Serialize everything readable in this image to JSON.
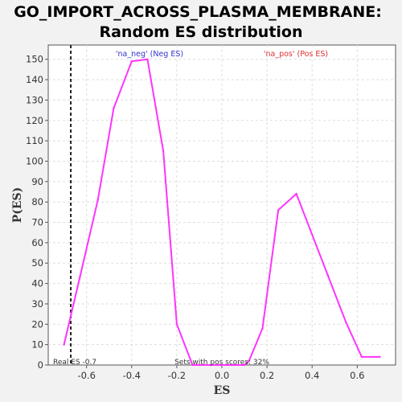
{
  "chart_data": {
    "type": "line",
    "title_line1": "GO_IMPORT_ACROSS_PLASMA_MEMBRANE:",
    "title_line2": "Random ES distribution",
    "xlabel": "ES",
    "ylabel": "P(ES)",
    "xlim": [
      -0.77,
      0.77
    ],
    "ylim": [
      0,
      157
    ],
    "xticks": [
      -0.6,
      -0.4,
      -0.2,
      0.0,
      0.2,
      0.4,
      0.6
    ],
    "xtick_labels": [
      "-0.6",
      "-0.4",
      "-0.2",
      "0.0",
      "0.2",
      "0.4",
      "0.6"
    ],
    "yticks": [
      0,
      10,
      20,
      30,
      40,
      50,
      60,
      70,
      80,
      90,
      100,
      110,
      120,
      130,
      140,
      150
    ],
    "grid": true,
    "series": [
      {
        "color": "#ff33ff",
        "x": [
          -0.7,
          -0.63,
          -0.55,
          -0.48,
          -0.4,
          -0.33,
          -0.26,
          -0.2,
          -0.13,
          -0.1,
          -0.05,
          0.0,
          0.05,
          0.1,
          0.12,
          0.18,
          0.25,
          0.33,
          0.4,
          0.47,
          0.55,
          0.62,
          0.7
        ],
        "y": [
          10,
          43,
          81,
          126,
          149,
          150,
          105,
          20,
          0,
          0,
          0,
          0,
          0,
          0,
          2,
          18,
          76,
          84,
          64,
          44,
          21,
          4,
          4
        ]
      }
    ],
    "real_es": -0.67,
    "real_es_label": "Real ES -0.7",
    "neg_label": "'na_neg' (Neg ES)",
    "pos_label": "'na_pos' (Pos ES)",
    "pos_scores_label": "Sets with pos scores: 32%"
  },
  "colors": {
    "background": "#f2f2f2",
    "plot_background": "#ffffff",
    "line": "#ff33ff",
    "neg_label": "#3333cc",
    "pos_label": "#e03030",
    "grid": "#dddddd"
  }
}
